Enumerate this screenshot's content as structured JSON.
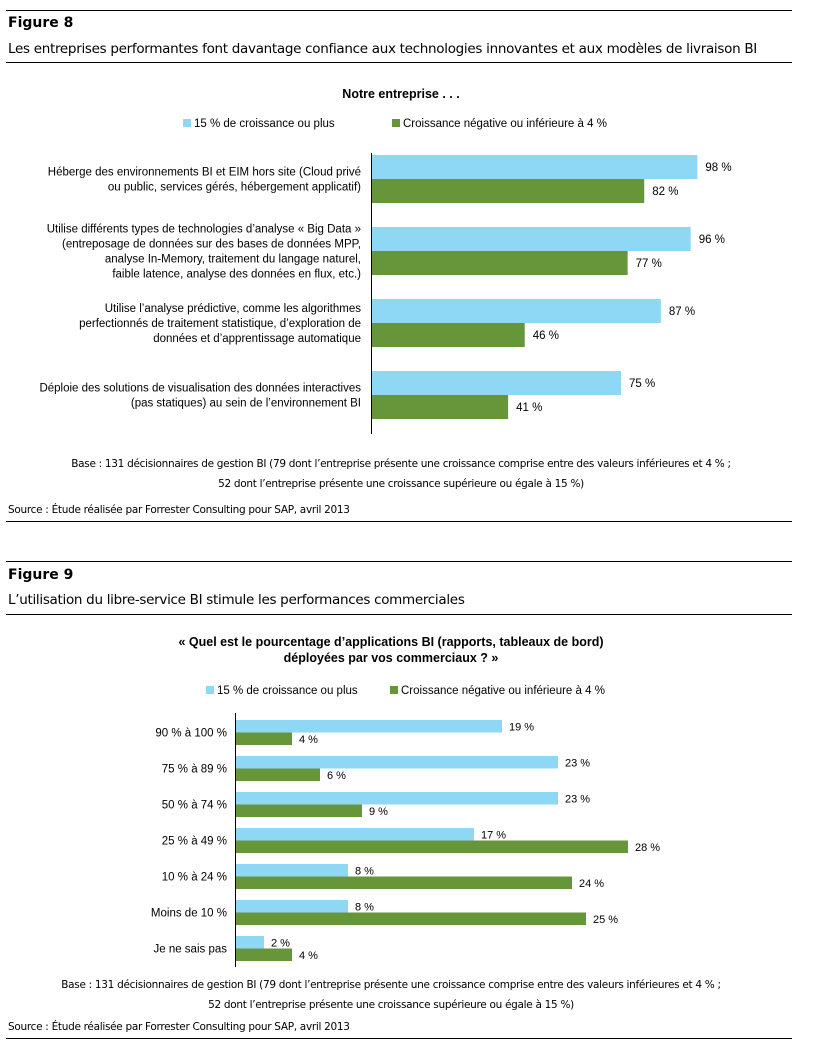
{
  "colors": {
    "series1": "#8fd8f5",
    "series2": "#67963a"
  },
  "figure8": {
    "label": "Figure 8",
    "title": "Les entreprises performantes font davantage confiance aux technologies innovantes et aux modèles de livraison BI",
    "legend": [
      "15 % de croissance ou plus",
      "Croissance négative ou inférieure à 4 %"
    ],
    "base_lines": [
      "Base : 131 décisionnaires de gestion BI (79 dont l’entreprise présente une croissance comprise entre des valeurs inférieures et 4 % ;",
      "52 dont l’entreprise présente une croissance supérieure ou égale à 15 %)"
    ],
    "source": "Source : Étude réalisée par Forrester Consulting pour SAP, avril 2013"
  },
  "figure9": {
    "label": "Figure 9",
    "title": "L’utilisation du libre-service BI stimule les performances commerciales",
    "legend": [
      "15 % de croissance ou plus",
      "Croissance négative ou inférieure à 4 %"
    ],
    "base_lines": [
      "Base : 131 décisionnaires de gestion BI (79 dont l’entreprise présente une croissance comprise entre des valeurs inférieures et 4 % ;",
      "52 dont l’entreprise présente une croissance supérieure ou égale à 15 %)"
    ],
    "source": "Source : Étude réalisée par Forrester Consulting pour SAP, avril 2013"
  },
  "chart_data": [
    {
      "type": "bar",
      "orientation": "horizontal",
      "title": "Notre entreprise . . .",
      "categories": [
        [
          "Héberge des environnements  BI et EIM hors site (Cloud privé",
          "ou public, services gérés, hébergement applicatif)"
        ],
        [
          "Utilise différents types de technologies d’analyse « Big Data »",
          "(entreposage de données sur des bases de données MPP,",
          "analyse In-Memory,  traitement du langage naturel,",
          "faible latence, analyse des données en flux, etc.)"
        ],
        [
          "Utilise l’analyse prédictive, comme les algorithmes",
          "perfectionnés de traitement statistique, d’exploration de",
          "données et d’apprentissage automatique"
        ],
        [
          "Déploie des solutions de visualisation des données interactives",
          "(pas statiques) au sein de l’environnement  BI"
        ]
      ],
      "series": [
        {
          "name": "15 % de croissance ou plus",
          "values": [
            98,
            96,
            87,
            75
          ],
          "labels": [
            "98 %",
            "96 %",
            "87 %",
            "75 %"
          ]
        },
        {
          "name": "Croissance négative ou inférieure à 4 %",
          "values": [
            82,
            77,
            46,
            41
          ],
          "labels": [
            "82 %",
            "77 %",
            "46 %",
            "41 %"
          ]
        }
      ],
      "unit": "%",
      "xlim": [
        0,
        100
      ],
      "grid": false,
      "legend_position": "top"
    },
    {
      "type": "bar",
      "orientation": "horizontal",
      "title": [
        "« Quel est le pourcentage d’applications  BI (rapports, tableaux de bord)",
        "déployées par vos commerciaux ? »"
      ],
      "categories": [
        "90 % à 100 %",
        "75 % à 89 %",
        "50 % à 74 %",
        "25 % à 49 %",
        "10 % à 24 %",
        "Moins de 10 %",
        "Je ne sais pas"
      ],
      "series": [
        {
          "name": "15 % de croissance ou plus",
          "values": [
            19,
            23,
            23,
            17,
            8,
            8,
            2
          ],
          "labels": [
            "19 %",
            "23 %",
            "23 %",
            "17 %",
            "8 %",
            "8 %",
            "2 %"
          ]
        },
        {
          "name": "Croissance négative ou inférieure à 4 %",
          "values": [
            4,
            6,
            9,
            28,
            24,
            25,
            4
          ],
          "labels": [
            "4 %",
            "6 %",
            "9 %",
            "28 %",
            "24 %",
            "25 %",
            "4 %"
          ]
        }
      ],
      "unit": "%",
      "xlim": [
        0,
        30
      ],
      "grid": false,
      "legend_position": "top"
    }
  ]
}
